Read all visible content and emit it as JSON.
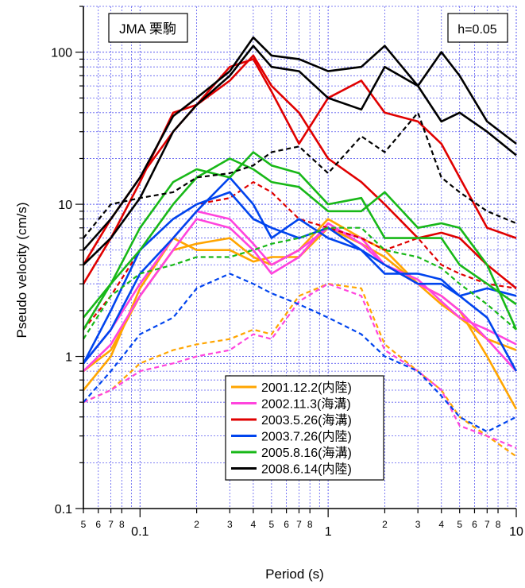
{
  "chart_data": {
    "type": "line",
    "xlabel": "Period (s)",
    "ylabel": "Pseudo velocity (cm/s)",
    "x_scale": "log",
    "y_scale": "log",
    "xlim": [
      0.05,
      10
    ],
    "ylim": [
      0.1,
      200
    ],
    "grid": true,
    "legend_position": "bottom-center",
    "annotations": {
      "station": "JMA 栗駒",
      "damping": "h=0.05"
    },
    "y_ticks": [
      {
        "value": 0.1,
        "label": "0.1"
      },
      {
        "value": 1,
        "label": "1"
      },
      {
        "value": 10,
        "label": "10"
      },
      {
        "value": 100,
        "label": "100"
      }
    ],
    "x_ticks": [
      {
        "value": 0.05,
        "label": "5",
        "minor": true
      },
      {
        "value": 0.06,
        "label": "6",
        "minor": true
      },
      {
        "value": 0.07,
        "label": "7",
        "minor": true
      },
      {
        "value": 0.08,
        "label": "8",
        "minor": true
      },
      {
        "value": 0.1,
        "label": "0.1",
        "minor": false
      },
      {
        "value": 0.2,
        "label": "2",
        "minor": true
      },
      {
        "value": 0.3,
        "label": "3",
        "minor": true
      },
      {
        "value": 0.4,
        "label": "4",
        "minor": true
      },
      {
        "value": 0.5,
        "label": "5",
        "minor": true
      },
      {
        "value": 0.6,
        "label": "6",
        "minor": true
      },
      {
        "value": 0.7,
        "label": "7",
        "minor": true
      },
      {
        "value": 0.8,
        "label": "8",
        "minor": true
      },
      {
        "value": 1,
        "label": "1",
        "minor": false
      },
      {
        "value": 2,
        "label": "2",
        "minor": true
      },
      {
        "value": 3,
        "label": "3",
        "minor": true
      },
      {
        "value": 4,
        "label": "4",
        "minor": true
      },
      {
        "value": 5,
        "label": "5",
        "minor": true
      },
      {
        "value": 6,
        "label": "6",
        "minor": true
      },
      {
        "value": 7,
        "label": "7",
        "minor": true
      },
      {
        "value": 8,
        "label": "8",
        "minor": true
      },
      {
        "value": 10,
        "label": "10",
        "minor": false
      }
    ],
    "x": [
      0.05,
      0.07,
      0.1,
      0.15,
      0.2,
      0.3,
      0.4,
      0.5,
      0.7,
      1.0,
      1.5,
      2.0,
      3.0,
      4.0,
      5.0,
      7.0,
      10.0
    ],
    "series": [
      {
        "name": "2001.12.2(内陸)",
        "color": "#ffa500",
        "solid": [
          [
            0.8,
            1.1,
            2.5,
            5,
            5.5,
            6,
            4.5,
            4,
            5,
            8,
            6,
            5,
            3,
            2.5,
            2,
            1,
            0.45
          ],
          [
            0.6,
            1.0,
            2.8,
            6,
            5,
            5,
            4.2,
            4.5,
            4.5,
            7,
            5.5,
            4.5,
            3,
            2.2,
            1.8,
            1.3,
            1.1
          ]
        ],
        "dashed": [
          [
            0.5,
            0.6,
            0.9,
            1.1,
            1.2,
            1.3,
            1.5,
            1.4,
            2.5,
            3,
            2.8,
            1.2,
            0.8,
            0.6,
            0.4,
            0.3,
            0.22
          ]
        ]
      },
      {
        "name": "2002.11.3(海溝)",
        "color": "#ff44dd",
        "solid": [
          [
            0.9,
            1.5,
            3,
            6,
            9,
            8,
            5.5,
            4,
            5,
            7,
            6,
            4,
            3,
            2.5,
            2,
            1.3,
            0.8
          ],
          [
            0.8,
            1.2,
            2.5,
            5,
            8,
            7,
            5,
            3.5,
            4.5,
            7.5,
            5.5,
            4,
            3.2,
            2.3,
            1.8,
            1.5,
            1.2
          ]
        ],
        "dashed": [
          [
            0.5,
            0.6,
            0.8,
            0.9,
            1.0,
            1.1,
            1.4,
            1.3,
            2.3,
            3,
            2.5,
            1.1,
            0.8,
            0.6,
            0.35,
            0.3,
            0.25
          ]
        ]
      },
      {
        "name": "2003.5.26(海溝)",
        "color": "#e00000",
        "solid": [
          [
            4,
            8,
            15,
            30,
            45,
            65,
            95,
            60,
            40,
            20,
            14,
            10,
            6,
            6.5,
            6,
            4,
            2.8
          ],
          [
            3,
            6,
            14,
            40,
            45,
            80,
            90,
            55,
            25,
            50,
            65,
            40,
            35,
            25,
            15,
            7,
            6
          ]
        ],
        "dashed": [
          [
            1.5,
            2.5,
            5,
            8,
            10,
            11,
            14,
            12,
            8,
            7,
            6,
            5,
            6,
            4,
            3.5,
            3,
            2.8
          ]
        ]
      },
      {
        "name": "2003.7.26(内陸)",
        "color": "#0044ee",
        "solid": [
          [
            0.9,
            2,
            5,
            8,
            10,
            12,
            8,
            7,
            6,
            7,
            5,
            4,
            3,
            3,
            2.5,
            1.8,
            0.8
          ],
          [
            0.9,
            1.5,
            3.5,
            6,
            9,
            15,
            10,
            6,
            8,
            6,
            5,
            3.5,
            3.5,
            3.2,
            2.5,
            2.8,
            2.5
          ]
        ],
        "dashed": [
          [
            0.5,
            0.8,
            1.4,
            1.8,
            2.8,
            3.5,
            3,
            2.6,
            2.2,
            1.8,
            1.4,
            1.0,
            0.8,
            0.55,
            0.4,
            0.32,
            0.4
          ]
        ]
      },
      {
        "name": "2005.8.16(海溝)",
        "color": "#18b818",
        "solid": [
          [
            1.8,
            3,
            7,
            14,
            17,
            15,
            22,
            18,
            16,
            10,
            11,
            6,
            6,
            6,
            4,
            3,
            2.2
          ],
          [
            1.5,
            3,
            5,
            10,
            15,
            20,
            17,
            14,
            13,
            9,
            9,
            12,
            7,
            7.5,
            7,
            4,
            1.5
          ]
        ],
        "dashed": [
          [
            1.3,
            2.5,
            3.5,
            4,
            4.5,
            4.5,
            5,
            5.5,
            6,
            7,
            7,
            5,
            4.5,
            3.8,
            3,
            2.2,
            1.5
          ]
        ]
      },
      {
        "name": "2008.6.14(内陸)",
        "color": "#000000",
        "solid": [
          [
            5,
            8,
            15,
            38,
            50,
            75,
            125,
            95,
            90,
            75,
            80,
            110,
            60,
            100,
            70,
            35,
            25
          ],
          [
            4,
            6,
            11,
            30,
            45,
            70,
            110,
            80,
            75,
            50,
            42,
            80,
            60,
            35,
            40,
            30,
            21
          ]
        ],
        "dashed": [
          [
            6,
            10,
            11,
            12,
            15,
            16,
            18,
            22,
            24,
            16,
            28,
            22,
            40,
            15,
            12,
            9,
            7.5
          ]
        ]
      }
    ]
  }
}
